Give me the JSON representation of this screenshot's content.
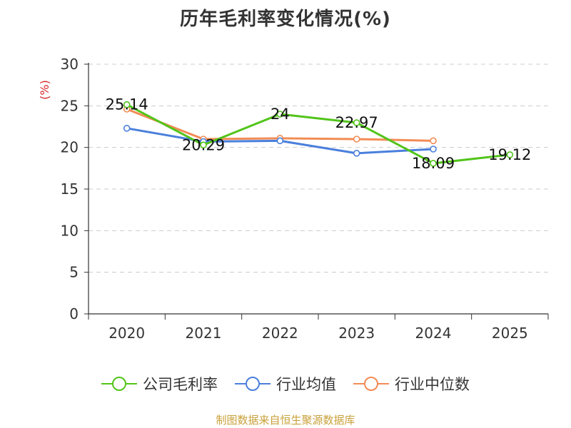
{
  "title": "历年毛利率变化情况(%)",
  "footer": "制图数据来自恒生聚源数据库",
  "colors": {
    "axis": "#333333",
    "grid": "#cccccc",
    "unit": "#d62728",
    "text": "#333333"
  },
  "chart_data": {
    "type": "line",
    "title": "历年毛利率变化情况(%)",
    "ylabel": "(%)",
    "xlabel": "",
    "ylim": [
      0,
      30
    ],
    "yticks": [
      "0",
      "5",
      "10",
      "15",
      "20",
      "25",
      "30"
    ],
    "categories": [
      "2020",
      "2021",
      "2022",
      "2023",
      "2024",
      "2025"
    ],
    "grid": true,
    "legend_position": "bottom",
    "series": [
      {
        "name": "公司毛利率",
        "color": "#52c41a",
        "values": [
          25.14,
          20.29,
          24,
          22.97,
          18.09,
          19.12
        ],
        "labels": [
          "25.14",
          "20.29",
          "24",
          "22.97",
          "18.09",
          "19.12"
        ]
      },
      {
        "name": "行业均值",
        "color": "#4a7fdc",
        "values": [
          22.3,
          20.7,
          20.8,
          19.3,
          19.8,
          null
        ],
        "labels": null
      },
      {
        "name": "行业中位数",
        "color": "#f28c55",
        "values": [
          24.6,
          21.0,
          21.1,
          21.0,
          20.8,
          null
        ],
        "labels": null
      }
    ]
  }
}
